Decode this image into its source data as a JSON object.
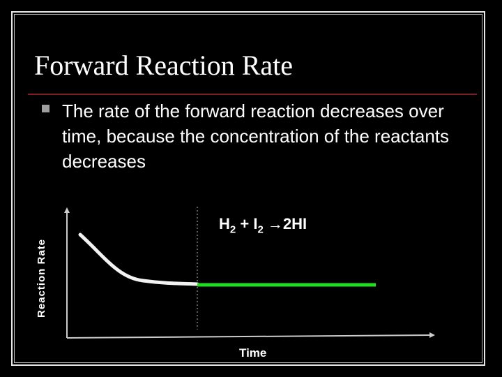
{
  "slide": {
    "title": "Forward Reaction Rate",
    "bullet": "The rate of the forward reaction decreases over time, because the concentration of the reactants decreases"
  },
  "diagram": {
    "y_axis_label": "Reaction Rate",
    "x_axis_label": "Time",
    "equation": {
      "reactant1": "H",
      "reactant1_sub": "2",
      "plus": " + ",
      "reactant2": "I",
      "reactant2_sub": "2",
      "arrow": " →",
      "product": "2HI"
    },
    "colors": {
      "decreasing_curve": "#f2f2f2",
      "equilibrium_line": "#22dd22",
      "axes": "#cccccc",
      "divider": "#bbbbbb"
    }
  }
}
